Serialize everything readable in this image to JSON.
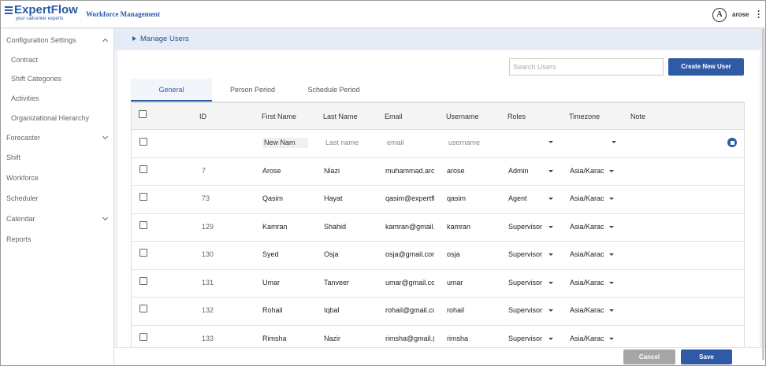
{
  "header": {
    "brand": "ExpertFlow",
    "tagline": "your callcenter experts",
    "app": "Workforce Management",
    "avatar": "A",
    "user": "arose"
  },
  "sidebar": [
    "Configuration Settings",
    "Contract",
    "Shift Categories",
    "Activities",
    "Organizational Hierarchy",
    "Forecaster",
    "Shift",
    "Workforce",
    "Scheduler",
    "Calendar",
    "Reports"
  ],
  "breadcrumb": "Manage Users",
  "search_placeholder": "Search Users",
  "create_button": "Create New User",
  "tabs": [
    "General",
    "Person Period",
    "Schedule Period"
  ],
  "table": {
    "columns": [
      "ID",
      "First Name",
      "Last Name",
      "Email",
      "Username",
      "Roles",
      "Timezone",
      "Note"
    ],
    "new_row": [
      "New Nam",
      "Last name",
      "email",
      "username"
    ],
    "rows": [
      [
        7,
        "Arose",
        "Niazi",
        "muhammad.arc",
        "arose",
        "Admin",
        "Asia/Karac"
      ],
      [
        73,
        "Qasim",
        "Hayat",
        "qasim@expertfl",
        "qasim",
        "Agent",
        "Asia/Karac"
      ],
      [
        129,
        "Kamran",
        "Shahid",
        "kamran@gmail.",
        "kamran",
        "Supervisor",
        "Asia/Karac"
      ],
      [
        130,
        "Syed",
        "Osja",
        "osja@gmail.cor",
        "osja",
        "Supervisor",
        "Asia/Karac"
      ],
      [
        131,
        "Umar",
        "Tanveer",
        "umar@gmail.co",
        "umar",
        "Supervisor",
        "Asia/Karac"
      ],
      [
        132,
        "Rohail",
        "Iqbal",
        "rohail@gmail.cc",
        "rohail",
        "Supervisor",
        "Asia/Karac"
      ],
      [
        133,
        "Rimsha",
        "Nazir",
        "rimsha@gmail.(",
        "rimsha",
        "Supervisor",
        "Asia/Karac"
      ]
    ]
  },
  "footer": {
    "cancel": "Cancel",
    "save": "Save"
  }
}
